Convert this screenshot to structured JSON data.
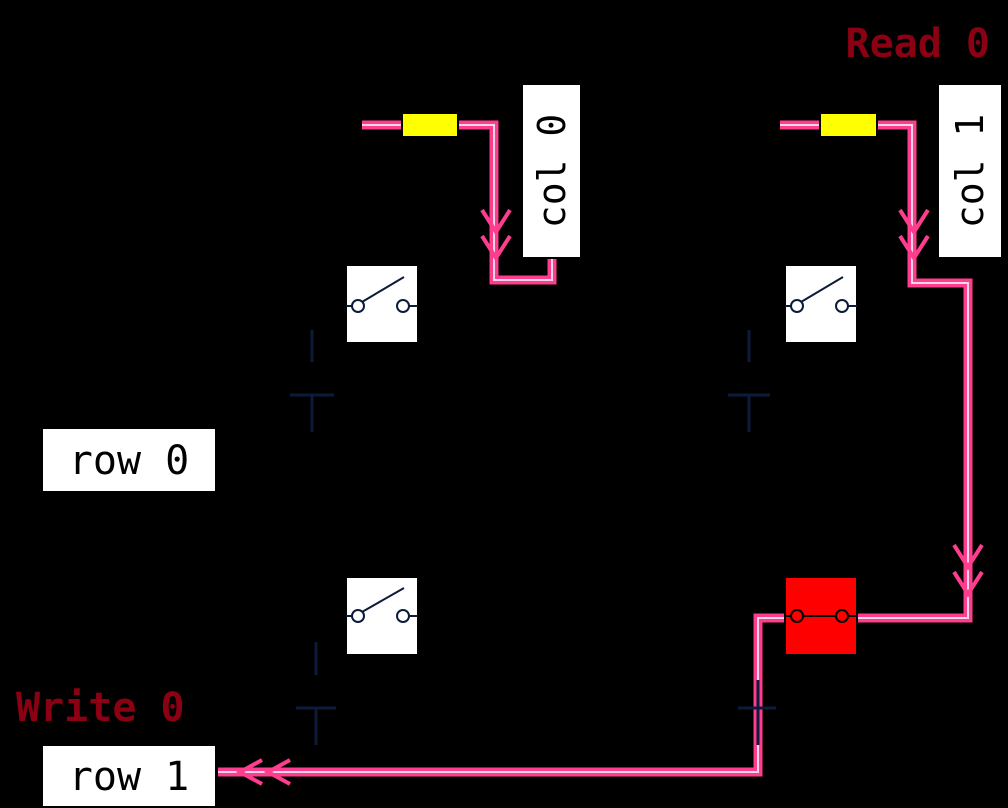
{
  "colors": {
    "background": "#000000",
    "wire_highlight": "#ff3d8f",
    "wire_core": "#f4d6e6",
    "status_text": "#8b0012",
    "label_fill": "#ffffff",
    "label_text": "#000000",
    "source_fill": "#ffff00",
    "active_switch": "#ff0000",
    "transistor": "#0d1b3a"
  },
  "status": {
    "read": "Read 0",
    "write": "Write 0"
  },
  "labels": {
    "col0": "col 0",
    "col1": "col 1",
    "row0": "row 0",
    "row1": "row 1"
  },
  "cells": [
    {
      "id": "r0c0",
      "state": "open",
      "active": false
    },
    {
      "id": "r0c1",
      "state": "open",
      "active": false
    },
    {
      "id": "r1c0",
      "state": "open",
      "active": false
    },
    {
      "id": "r1c1",
      "state": "closed",
      "active": true
    }
  ],
  "icons": {
    "switch": "switch-icon",
    "source": "source-icon",
    "transistor": "transistor-icon",
    "flow_arrow": "arrow-icon"
  }
}
